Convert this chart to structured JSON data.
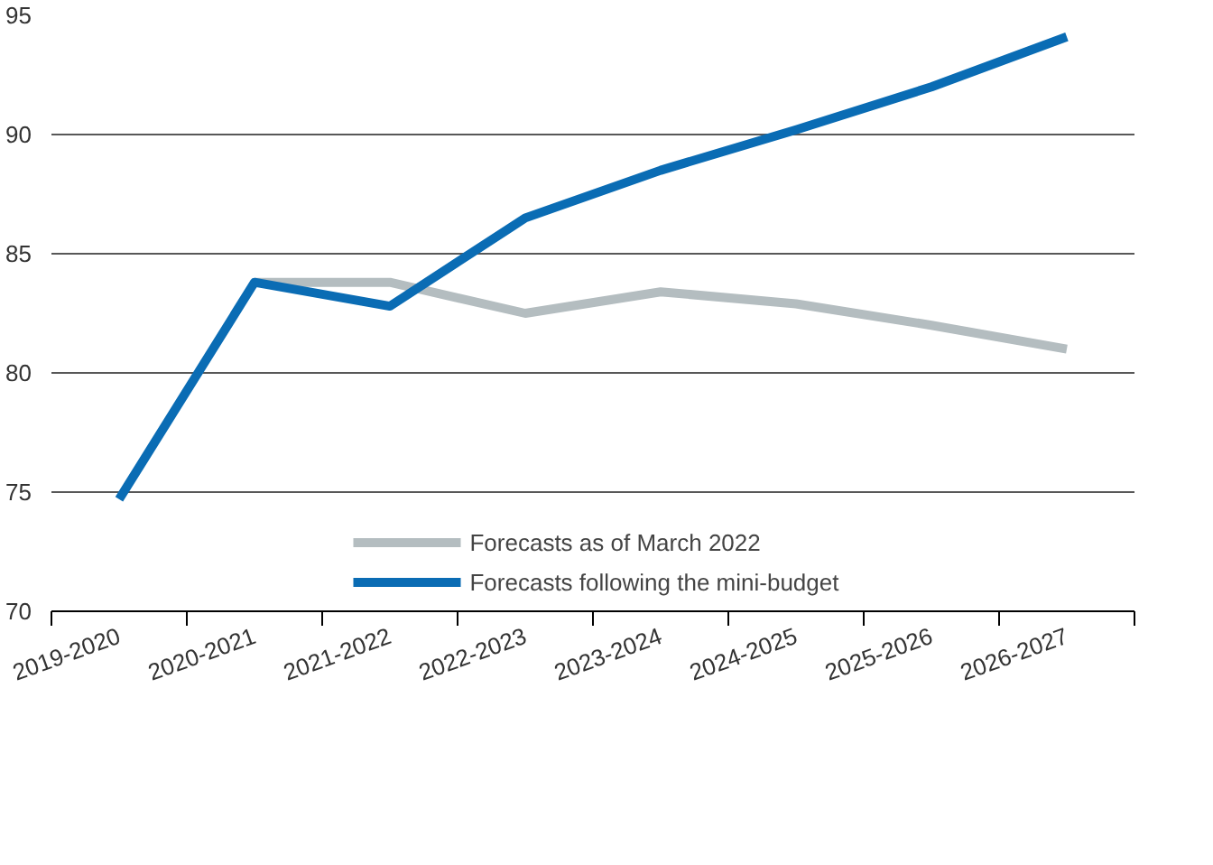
{
  "chart_data": {
    "type": "line",
    "categories": [
      "2019-2020",
      "2020-2021",
      "2021-2022",
      "2022-2023",
      "2023-2024",
      "2024-2025",
      "2025-2026",
      "2026-2027"
    ],
    "series": [
      {
        "name": "Forecasts as of March 2022",
        "color": "#b4bdc0",
        "values": [
          null,
          83.8,
          83.8,
          82.5,
          83.4,
          82.9,
          82.0,
          81.0
        ]
      },
      {
        "name": "Forecasts following the mini-budget",
        "color": "#0a6cb4",
        "values": [
          74.7,
          83.8,
          82.8,
          86.5,
          88.5,
          90.2,
          92.0,
          94.1
        ]
      }
    ],
    "ylim": [
      70,
      95
    ],
    "yticks": [
      70,
      75,
      80,
      85,
      90,
      95
    ],
    "grid": "y",
    "legend": "bottom",
    "marker": "none",
    "line_style": "solid"
  }
}
